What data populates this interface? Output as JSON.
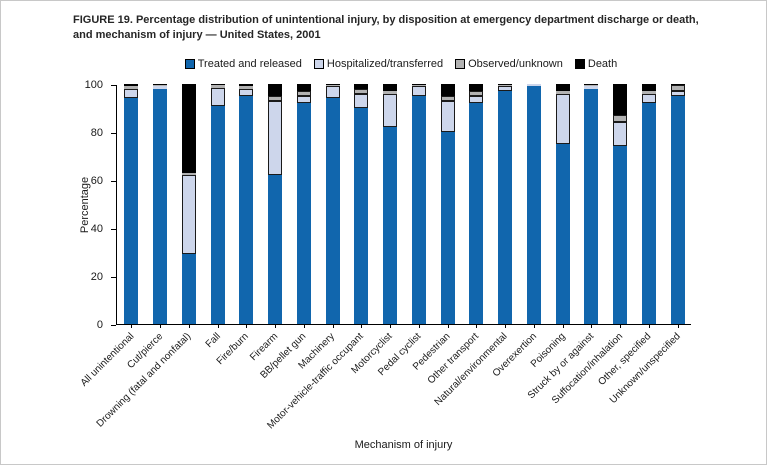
{
  "figure_title": "FIGURE 19. Percentage distribution of unintentional injury, by disposition at emergency department discharge or death, and mechanism of injury — United States, 2001",
  "chart_data": {
    "type": "bar",
    "stacked": true,
    "percent_stack": true,
    "title": "FIGURE 19. Percentage distribution of unintentional injury, by disposition at emergency department discharge or death, and mechanism of injury — United States, 2001",
    "xlabel": "Mechanism of injury",
    "ylabel": "Percentage",
    "ylim": [
      0,
      100
    ],
    "yticks": [
      0,
      20,
      40,
      60,
      80,
      100
    ],
    "grid": false,
    "legend_position": "top",
    "categories": [
      "All unintentional",
      "Cut/pierce",
      "Drowning (fatal and nonfatal)",
      "Fall",
      "Fire/burn",
      "Firearm",
      "BB/pellet gun",
      "Machinery",
      "Motor-vehicle-traffic occupant",
      "Motorcyclist",
      "Pedal cyclist",
      "Pedestrian",
      "Other transport",
      "Natural/environmental",
      "Overexertion",
      "Poisoning",
      "Struck by or against",
      "Suffocation/inhalation",
      "Other, specified",
      "Unknown/unspecified"
    ],
    "series": [
      {
        "name": "Treated and released",
        "color": "#1166ad",
        "values": [
          94,
          98,
          29,
          91,
          95,
          62,
          92,
          94,
          90,
          82,
          95,
          80,
          92,
          97,
          99,
          75,
          98,
          74,
          92,
          95
        ]
      },
      {
        "name": "Hospitalized/transferred",
        "color": "#cdd6eb",
        "values": [
          4,
          1,
          33,
          7.5,
          3,
          31,
          3,
          5,
          6,
          14,
          4,
          13,
          3,
          2,
          1,
          21,
          1,
          10,
          4,
          2
        ]
      },
      {
        "name": "Observed/unknown",
        "color": "#b2b2b2",
        "values": [
          1,
          0.5,
          1,
          1,
          1,
          2,
          2,
          0.5,
          2,
          1,
          0.5,
          2,
          2,
          0.5,
          0,
          1,
          0.5,
          3,
          1,
          2.5
        ]
      },
      {
        "name": "Death",
        "color": "#000000",
        "values": [
          1,
          0.5,
          37,
          0.5,
          1,
          5,
          3,
          0.5,
          2,
          3,
          0.5,
          5,
          3,
          0.5,
          0,
          3,
          0.5,
          13,
          3,
          0.5
        ]
      }
    ]
  }
}
